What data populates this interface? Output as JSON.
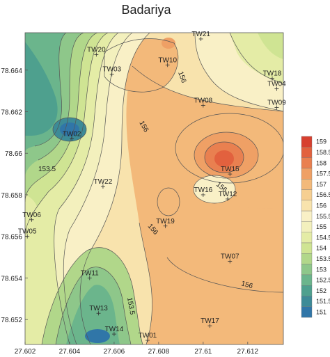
{
  "map": {
    "title": "Badariya",
    "x_axis": {
      "min": 27.602,
      "max": 27.6136,
      "ticks": [
        "27.602",
        "27.604",
        "27.606",
        "27.608",
        "27.61",
        "27.612"
      ]
    },
    "y_axis": {
      "min": 78.6508,
      "max": 78.6658,
      "ticks": [
        "78.664",
        "78.662",
        "78.66",
        "78.658",
        "78.656",
        "78.654",
        "78.652"
      ]
    },
    "contour_labels": [
      "153.5",
      "156",
      "156",
      "156",
      "156",
      "153.5",
      "156"
    ],
    "wells": [
      {
        "name": "TW20",
        "x": 27.6052,
        "y": 78.66475
      },
      {
        "name": "TW10",
        "x": 27.6084,
        "y": 78.66425
      },
      {
        "name": "TW21",
        "x": 27.6099,
        "y": 78.6655
      },
      {
        "name": "TW18",
        "x": 27.6131,
        "y": 78.6636
      },
      {
        "name": "TW03",
        "x": 27.6059,
        "y": 78.6638
      },
      {
        "name": "TW04",
        "x": 27.6133,
        "y": 78.6631
      },
      {
        "name": "TW08",
        "x": 27.61,
        "y": 78.6623
      },
      {
        "name": "TW09",
        "x": 27.6133,
        "y": 78.6622
      },
      {
        "name": "TW02",
        "x": 27.6041,
        "y": 78.6607
      },
      {
        "name": "TW15",
        "x": 27.6112,
        "y": 78.659
      },
      {
        "name": "TW22",
        "x": 27.6055,
        "y": 78.6584
      },
      {
        "name": "TW16",
        "x": 27.61,
        "y": 78.658
      },
      {
        "name": "TW12",
        "x": 27.6111,
        "y": 78.6578
      },
      {
        "name": "TW06",
        "x": 27.6023,
        "y": 78.6568
      },
      {
        "name": "TW19",
        "x": 27.6083,
        "y": 78.6565
      },
      {
        "name": "TW05",
        "x": 27.6021,
        "y": 78.656
      },
      {
        "name": "TW07",
        "x": 27.6112,
        "y": 78.6548
      },
      {
        "name": "TW11",
        "x": 27.6049,
        "y": 78.654
      },
      {
        "name": "TW13",
        "x": 27.6053,
        "y": 78.6523
      },
      {
        "name": "TW17",
        "x": 27.6103,
        "y": 78.6517
      },
      {
        "name": "TW14",
        "x": 27.606,
        "y": 78.6513
      },
      {
        "name": "TW01",
        "x": 27.6075,
        "y": 78.651
      }
    ]
  },
  "legend": {
    "levels": [
      "159",
      "158.5",
      "158",
      "157.5",
      "157",
      "156.5",
      "156",
      "155.5",
      "155",
      "154.5",
      "154",
      "153.5",
      "153",
      "152.5",
      "152",
      "151.5",
      "151"
    ],
    "colors": [
      "#d7402f",
      "#e2613e",
      "#e98050",
      "#efa065",
      "#f3b97a",
      "#f6cf91",
      "#f8e3ad",
      "#f9f0c6",
      "#f3f0bd",
      "#e4eca6",
      "#cfe493",
      "#b1d78a",
      "#8ec78a",
      "#6bb58c",
      "#4ea08e",
      "#3d8b97",
      "#3076a8"
    ]
  }
}
